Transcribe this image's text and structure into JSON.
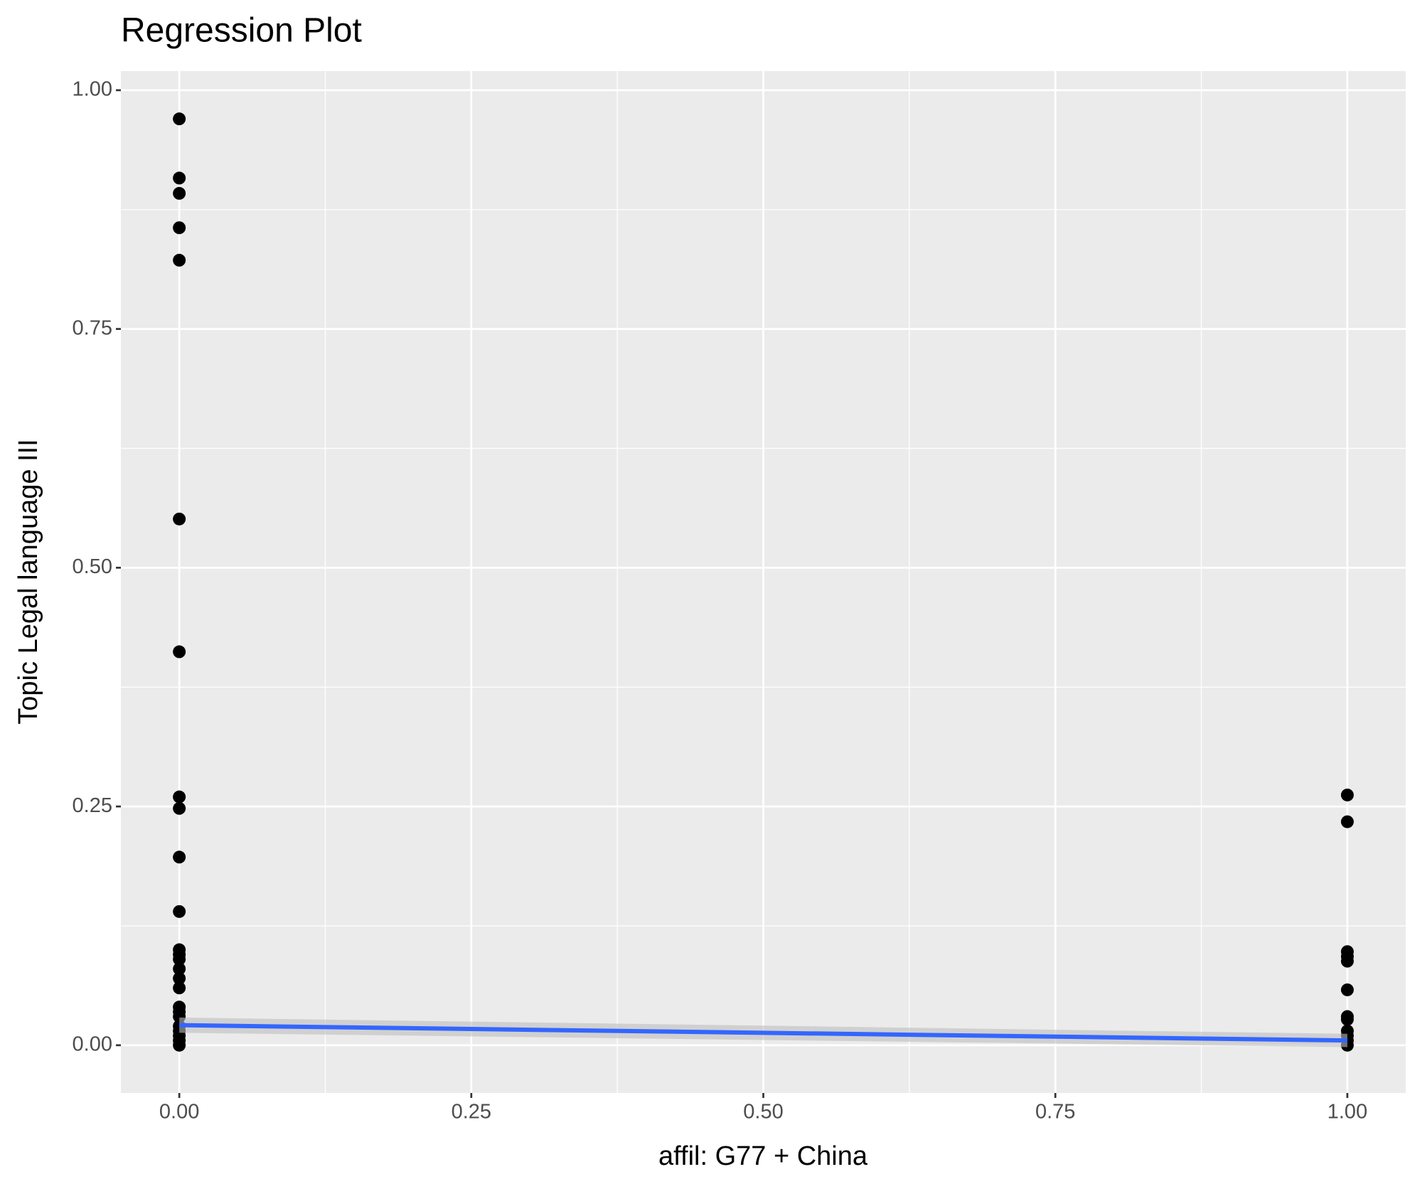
{
  "chart_data": {
    "type": "scatter",
    "title": "Regression Plot",
    "x_label": "affil: G77 + China",
    "y_label": "Topic Legal language III",
    "x": [
      0,
      0,
      0,
      0,
      0,
      0,
      0,
      0,
      0,
      0,
      0,
      0,
      0,
      0,
      0,
      0,
      0,
      0,
      0,
      0,
      0,
      0,
      0,
      0,
      0,
      1,
      1,
      1,
      1,
      1,
      1,
      1,
      1,
      1,
      1,
      1,
      1
    ],
    "y": [
      0.97,
      0.908,
      0.892,
      0.856,
      0.822,
      0.551,
      0.412,
      0.26,
      0.248,
      0.197,
      0.14,
      0.1,
      0.095,
      0.09,
      0.08,
      0.07,
      0.06,
      0.04,
      0.035,
      0.03,
      0.02,
      0.015,
      0.01,
      0.005,
      0,
      0.262,
      0.234,
      0.098,
      0.093,
      0.088,
      0.058,
      0.03,
      0.027,
      0.015,
      0.01,
      0.005,
      0
    ],
    "point_color": "#000000",
    "fit": {
      "x": [
        0,
        1
      ],
      "y": [
        0.021,
        0.005
      ],
      "lower": [
        0.013,
        -0.002
      ],
      "upper": [
        0.029,
        0.012
      ],
      "color": "#3366ff",
      "band_color": "#bebebe"
    },
    "xlim": [
      -0.05,
      1.05
    ],
    "ylim": [
      -0.05,
      1.02
    ],
    "xticks": [
      {
        "value": 0,
        "label": "0.00"
      },
      {
        "value": 0.25,
        "label": "0.25"
      },
      {
        "value": 0.5,
        "label": "0.50"
      },
      {
        "value": 0.75,
        "label": "0.75"
      },
      {
        "value": 1,
        "label": "1.00"
      }
    ],
    "yticks": [
      {
        "value": 0,
        "label": "0.00"
      },
      {
        "value": 0.25,
        "label": "0.25"
      },
      {
        "value": 0.5,
        "label": "0.50"
      },
      {
        "value": 0.75,
        "label": "0.75"
      },
      {
        "value": 1,
        "label": "1.00"
      }
    ],
    "grid": true
  }
}
